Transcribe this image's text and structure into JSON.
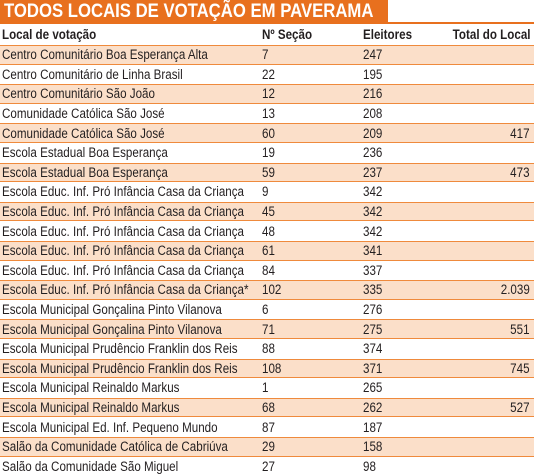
{
  "header": {
    "title": "TODOS LOCAIS DE VOTAÇÃO EM PAVERAMA"
  },
  "table": {
    "columns": [
      "Local de votação",
      "Nº Seção",
      "Eleitores",
      "Total do Local"
    ],
    "rows": [
      [
        "Centro Comunitário Boa Esperança Alta",
        "7",
        "247",
        null
      ],
      [
        "Centro Comunitário de Linha Brasil",
        "22",
        "195",
        null
      ],
      [
        "Centro Comunitário São João",
        "12",
        "216",
        null
      ],
      [
        "Comunidade Católica São José",
        "13",
        "208",
        null
      ],
      [
        "Comunidade Católica São José",
        "60",
        "209",
        "417"
      ],
      [
        "Escola Estadual Boa Esperança",
        "19",
        "236",
        null
      ],
      [
        "Escola Estadual Boa Esperança",
        "59",
        "237",
        "473"
      ],
      [
        "Escola Educ. Inf. Pró Infância Casa da Criança",
        "9",
        "342",
        null
      ],
      [
        "Escola Educ. Inf. Pró Infância Casa da Criança",
        "45",
        "342",
        null
      ],
      [
        "Escola Educ. Inf. Pró Infância Casa da Criança",
        "48",
        "342",
        null
      ],
      [
        "Escola Educ. Inf. Pró Infância Casa da Criança",
        "61",
        "341",
        null
      ],
      [
        "Escola Educ. Inf. Pró Infância Casa da Criança",
        "84",
        "337",
        null
      ],
      [
        "Escola Educ. Inf. Pró Infância Casa da Criança*",
        "102",
        "335",
        "2.039"
      ],
      [
        "Escola Municipal Gonçalina Pinto Vilanova",
        "6",
        "276",
        null
      ],
      [
        "Escola Municipal Gonçalina Pinto Vilanova",
        "71",
        "275",
        "551"
      ],
      [
        "Escola Municipal Prudêncio Franklin dos Reis",
        "88",
        "374",
        null
      ],
      [
        "Escola Municipal Prudêncio Franklin dos Reis",
        "108",
        "371",
        "745"
      ],
      [
        "Escola Municipal Reinaldo Markus",
        "1",
        "265",
        null
      ],
      [
        "Escola Municipal Reinaldo Markus",
        "68",
        "262",
        "527"
      ],
      [
        "Escola Municipal Ed. Inf. Pequeno Mundo",
        "87",
        "187",
        null
      ],
      [
        "Salão da Comunidade Católica de Cabriúva",
        "29",
        "158",
        null
      ],
      [
        "Salão da Comunidade São Miguel",
        "27",
        "98",
        null
      ]
    ]
  }
}
